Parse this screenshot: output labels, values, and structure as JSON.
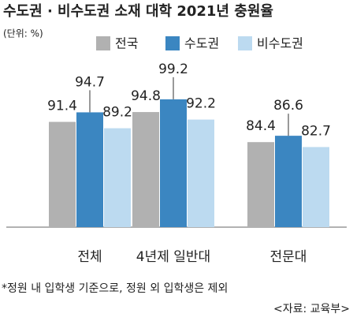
{
  "chart_data": {
    "type": "bar",
    "title": "수도권 · 비수도권 소재 대학 2021년 충원율",
    "unit_label": "(단위: %)",
    "categories": [
      "전체",
      "4년제 일반대",
      "전문대"
    ],
    "series": [
      {
        "name": "전국",
        "color": "#b1b1b1",
        "values": [
          91.4,
          94.8,
          84.4
        ]
      },
      {
        "name": "수도권",
        "color": "#3b86c1",
        "values": [
          94.7,
          99.2,
          86.6
        ]
      },
      {
        "name": "비수도권",
        "color": "#bcdaf0",
        "values": [
          89.2,
          92.2,
          82.7
        ]
      }
    ],
    "ylim": [
      55,
      100
    ],
    "footnote": "*정원 내 입학생 기준으로, 정원 외 입학생은 제외",
    "source": "<자료: 교육부>"
  }
}
